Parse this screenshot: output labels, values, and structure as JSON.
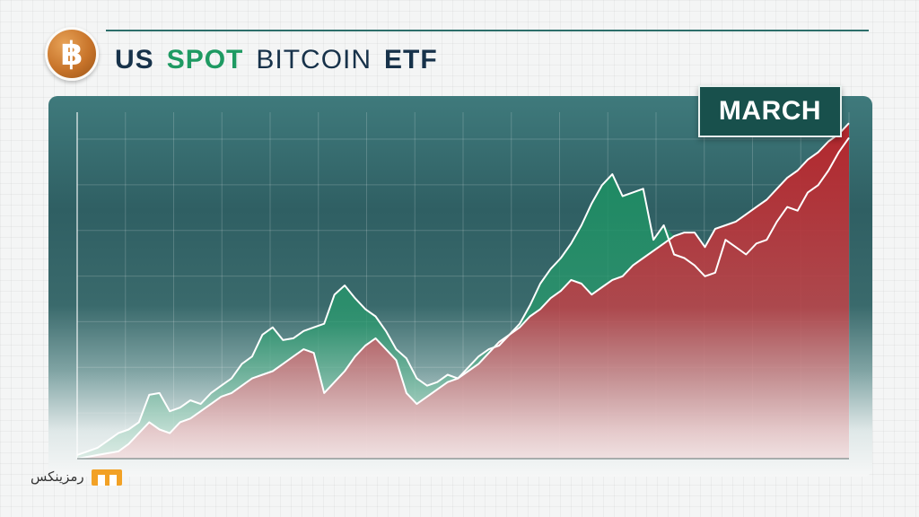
{
  "header": {
    "title_us": "US",
    "title_spot": "SPOT",
    "title_bitcoin": "BITCOIN",
    "title_etf": "ETF",
    "logo_glyph": "฿",
    "logo_icon": "bitcoin-logo-icon"
  },
  "callout": {
    "label": "MARCH"
  },
  "watermark": {
    "text": "رمزینکس",
    "icon": "brand-mark-icon"
  },
  "colors": {
    "upper_fill": "#1f8c63",
    "lower_fill": "#b8353a",
    "line": "#ffffff",
    "title_dark": "#17324a",
    "title_green": "#1e9a62",
    "logo_orange": "#c8742a",
    "watermark_orange": "#f2a125"
  },
  "chart_data": {
    "type": "area",
    "title": "",
    "xlabel": "",
    "ylabel": "",
    "grid": true,
    "x": [
      0,
      1,
      2,
      3,
      4,
      5,
      6,
      7,
      8,
      9,
      10,
      11,
      12,
      13,
      14,
      15,
      16,
      17,
      18,
      19,
      20,
      21,
      22,
      23,
      24,
      25,
      26,
      27,
      28,
      29,
      30,
      31,
      32,
      33,
      34,
      35,
      36,
      37,
      38,
      39,
      40,
      41,
      42,
      43,
      44,
      45,
      46,
      47,
      48,
      49,
      50,
      51,
      52,
      53,
      54,
      55,
      56,
      57,
      58,
      59,
      60,
      61,
      62,
      63,
      64,
      65,
      66,
      67,
      68,
      69,
      70,
      71,
      72,
      73,
      74,
      75
    ],
    "series": [
      {
        "values": [
          2,
          4,
          6,
          10,
          14,
          16,
          20,
          35,
          36,
          26,
          28,
          32,
          30,
          36,
          40,
          44,
          52,
          56,
          68,
          72,
          65,
          66,
          70,
          72,
          74,
          90,
          95,
          88,
          82,
          78,
          70,
          60,
          55,
          44,
          40,
          42,
          46,
          44,
          50,
          56,
          60,
          62,
          68,
          74,
          84,
          96,
          104,
          110,
          118,
          128,
          140,
          150,
          156,
          144,
          146,
          148,
          120,
          128,
          112,
          110,
          106,
          100,
          102,
          120,
          116,
          112,
          118,
          120,
          130,
          138,
          136,
          146,
          150,
          158,
          168,
          176
        ]
      },
      {
        "values": [
          0,
          1,
          2,
          3,
          4,
          8,
          14,
          20,
          16,
          14,
          20,
          22,
          26,
          30,
          34,
          36,
          40,
          44,
          46,
          48,
          52,
          56,
          60,
          58,
          36,
          42,
          48,
          56,
          62,
          66,
          60,
          54,
          36,
          30,
          34,
          38,
          42,
          44,
          48,
          52,
          58,
          64,
          68,
          72,
          78,
          82,
          88,
          92,
          98,
          96,
          90,
          94,
          98,
          100,
          106,
          110,
          114,
          118,
          122,
          124,
          124,
          116,
          126,
          128,
          130,
          134,
          138,
          142,
          148,
          154,
          158,
          164,
          168,
          174,
          178,
          184
        ]
      }
    ],
    "ylim": [
      0,
      190
    ]
  }
}
